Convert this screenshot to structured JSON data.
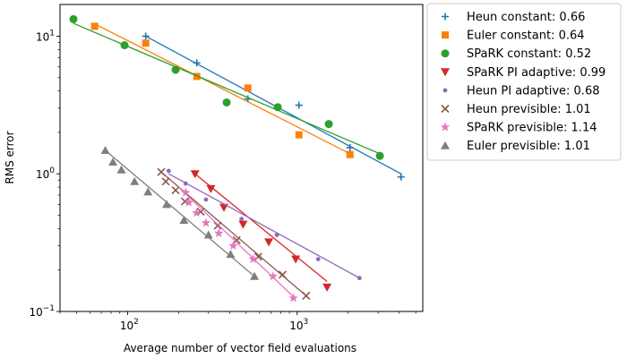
{
  "chart_data": {
    "type": "scatter",
    "xlabel": "Average number of vector field evaluations",
    "ylabel": "RMS error",
    "xscale": "log",
    "yscale": "log",
    "xlim": [
      40,
      5500
    ],
    "ylim": [
      0.1,
      17
    ],
    "xticks": [
      {
        "value": 100,
        "base": "10",
        "exp": "2"
      },
      {
        "value": 1000,
        "base": "10",
        "exp": "3"
      }
    ],
    "yticks": [
      {
        "value": 0.1,
        "base": "10",
        "exp": "−1"
      },
      {
        "value": 1,
        "base": "10",
        "exp": "0"
      },
      {
        "value": 10,
        "base": "10",
        "exp": "1"
      }
    ],
    "legend_position": "outside-right",
    "series": [
      {
        "name": "Heun constant: 0.66",
        "color": "#1f77b4",
        "marker": "plus",
        "x": [
          128,
          256,
          512,
          1024,
          2048,
          4096
        ],
        "y": [
          10.0,
          6.4,
          3.5,
          3.15,
          1.55,
          0.95
        ],
        "fit": [
          [
            128,
            10.0
          ],
          [
            4096,
            1.0
          ]
        ]
      },
      {
        "name": "Euler constant: 0.64",
        "color": "#ff7f0e",
        "marker": "square",
        "x": [
          64,
          128,
          256,
          512,
          1024,
          2048
        ],
        "y": [
          11.8,
          8.9,
          5.1,
          4.2,
          1.92,
          1.38
        ],
        "fit": [
          [
            64,
            12.3
          ],
          [
            2048,
            1.4
          ]
        ]
      },
      {
        "name": "SPaRK constant: 0.52",
        "color": "#2ca02c",
        "marker": "circle",
        "x": [
          48,
          96,
          192,
          384,
          768,
          1536,
          3072
        ],
        "y": [
          13.3,
          8.6,
          5.7,
          3.3,
          3.05,
          2.3,
          1.35
        ],
        "fit": [
          [
            48,
            12.4
          ],
          [
            3072,
            1.4
          ]
        ]
      },
      {
        "name": "SPaRK PI adaptive: 0.99",
        "color": "#d62728",
        "marker": "triangle-down",
        "x": [
          250,
          310,
          370,
          480,
          680,
          980,
          1500
        ],
        "y": [
          1.0,
          0.78,
          0.57,
          0.43,
          0.32,
          0.24,
          0.15
        ],
        "fit": [
          [
            250,
            1.0
          ],
          [
            1500,
            0.165
          ]
        ]
      },
      {
        "name": "Heun PI adaptive: 0.68",
        "color": "#9467bd",
        "marker": "dot",
        "x": [
          175,
          220,
          290,
          470,
          760,
          1330,
          2330
        ],
        "y": [
          1.05,
          0.85,
          0.65,
          0.47,
          0.36,
          0.24,
          0.175
        ],
        "fit": [
          [
            175,
            1.0
          ],
          [
            2330,
            0.175
          ]
        ]
      },
      {
        "name": "Heun previsible: 1.01",
        "color": "#8c564b",
        "marker": "x",
        "x": [
          158,
          168,
          192,
          218,
          270,
          340,
          440,
          590,
          820,
          1130
        ],
        "y": [
          1.03,
          0.88,
          0.76,
          0.63,
          0.53,
          0.42,
          0.33,
          0.25,
          0.185,
          0.13
        ],
        "fit": [
          [
            158,
            1.03
          ],
          [
            1130,
            0.13
          ]
        ]
      },
      {
        "name": "SPaRK previsible: 1.14",
        "color": "#e377c2",
        "marker": "star",
        "x": [
          220,
          230,
          255,
          290,
          345,
          420,
          550,
          720,
          950
        ],
        "y": [
          0.73,
          0.62,
          0.52,
          0.44,
          0.37,
          0.3,
          0.24,
          0.18,
          0.125
        ],
        "fit": [
          [
            200,
            0.8
          ],
          [
            950,
            0.128
          ]
        ]
      },
      {
        "name": "Euler previsible: 1.01",
        "color": "#7f7f7f",
        "marker": "triangle-up",
        "x": [
          74,
          82,
          92,
          110,
          132,
          170,
          215,
          300,
          405,
          560
        ],
        "y": [
          1.48,
          1.22,
          1.07,
          0.88,
          0.74,
          0.6,
          0.46,
          0.36,
          0.26,
          0.18
        ],
        "fit": [
          [
            74,
            1.48
          ],
          [
            560,
            0.18
          ]
        ]
      }
    ]
  }
}
